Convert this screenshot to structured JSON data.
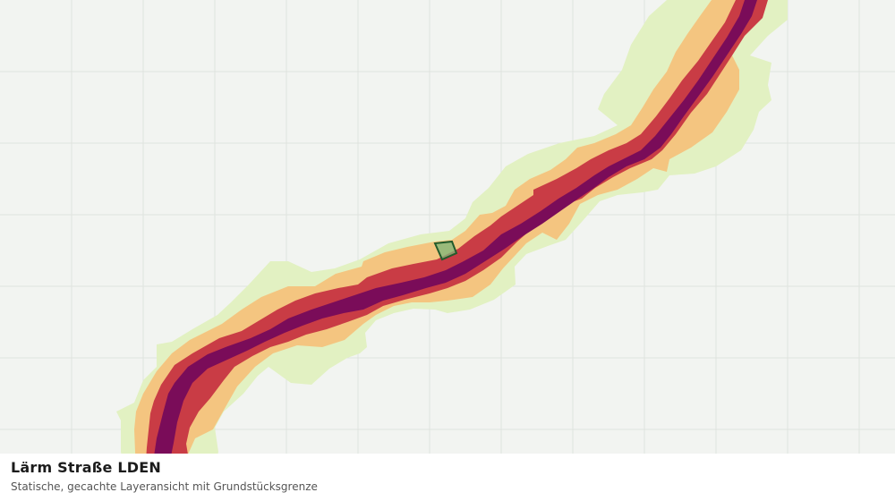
{
  "caption": {
    "title": "Lärm Straße LDEN",
    "subtitle": "Statische, gecachte Layeransicht mit Grundstücksgrenze"
  },
  "map": {
    "background_color": "#f2f4f1",
    "grid_color": "#dfe3de",
    "noise_band_colors": [
      "#e2f1c2",
      "#f4c580",
      "#c93c45",
      "#7a0c59"
    ],
    "parcel_fill": "#7cb67a",
    "parcel_stroke": "#235c2c"
  }
}
